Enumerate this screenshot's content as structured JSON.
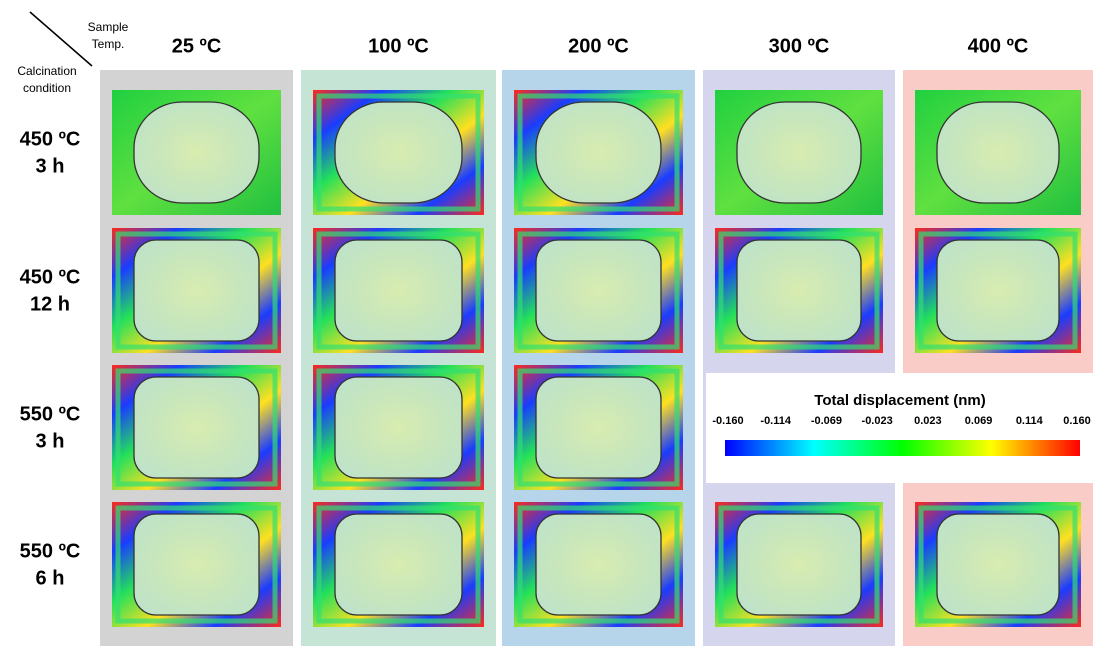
{
  "corner": {
    "column_axis": [
      "Sample",
      "Temp."
    ],
    "row_axis": [
      "Calcination",
      "condition"
    ]
  },
  "columns": [
    "25 ºC",
    "100 ºC",
    "200 ºC",
    "300 ºC",
    "400 ºC"
  ],
  "rows": [
    [
      "450 ºC",
      "3 h"
    ],
    [
      "450 ºC",
      "12 h"
    ],
    [
      "550 ºC",
      "3 h"
    ],
    [
      "550 ºC",
      "6 h"
    ]
  ],
  "colorbar": {
    "title": "Total displacement (nm)",
    "ticks": [
      "-0.160",
      "-0.114",
      "-0.069",
      "-0.023",
      "0.023",
      "0.069",
      "0.114",
      "0.160"
    ]
  }
}
